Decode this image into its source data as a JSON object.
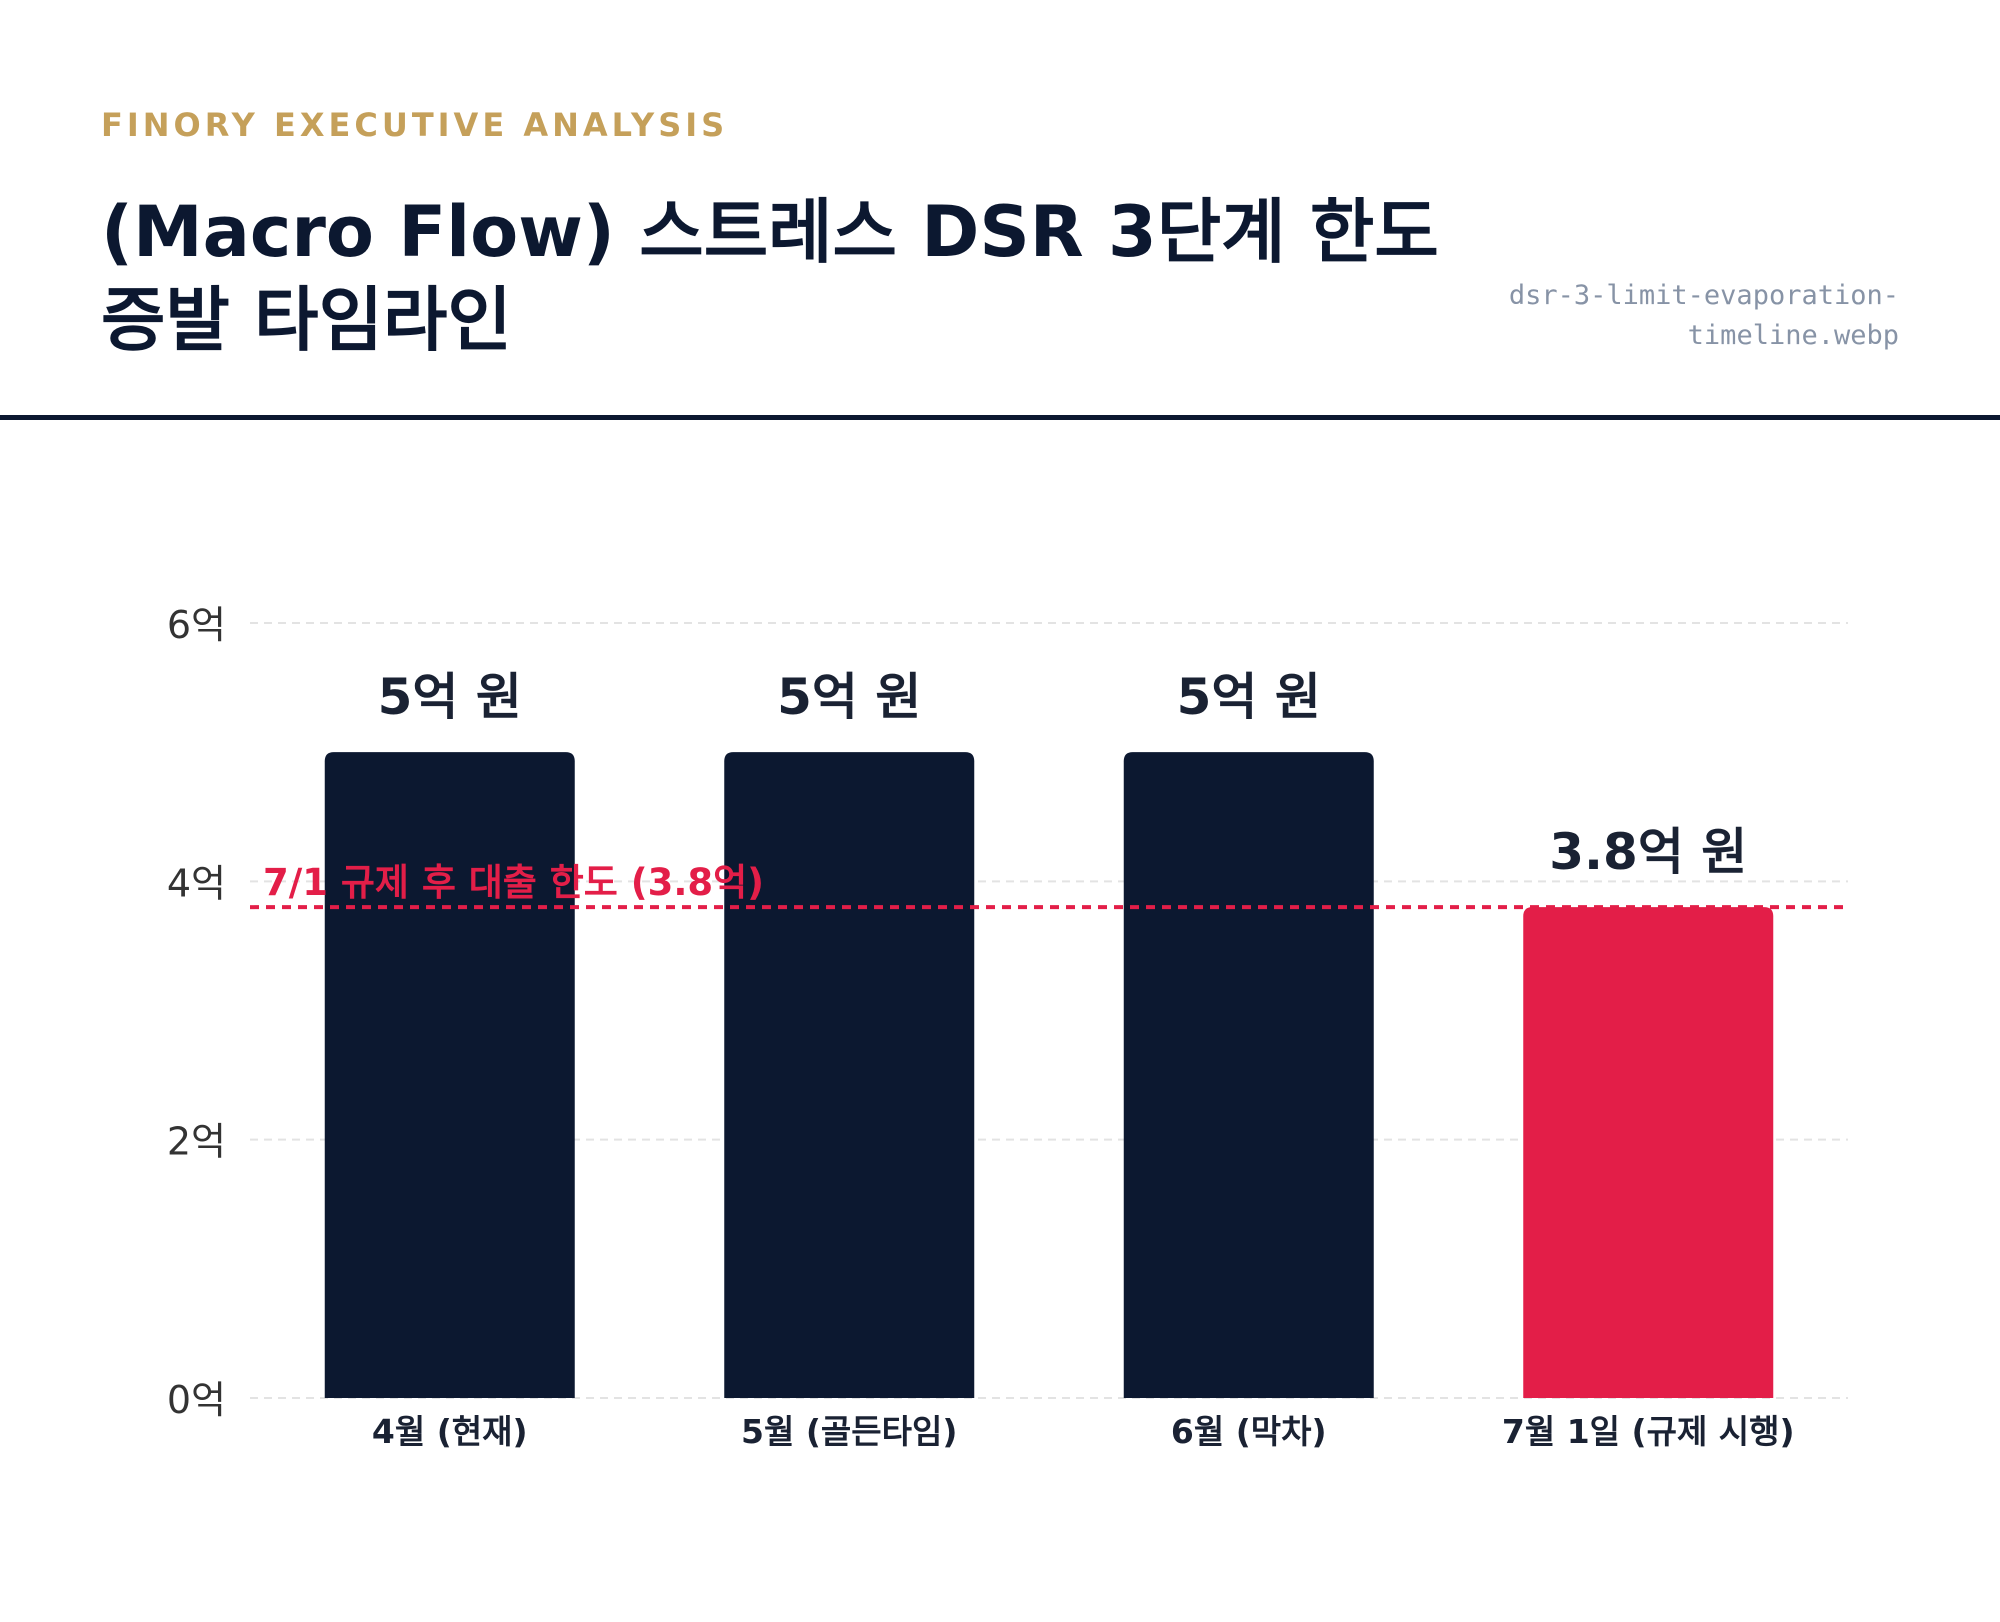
{
  "header": {
    "kicker": "FINORY EXECUTIVE ANALYSIS",
    "title": "(Macro Flow) 스트레스 DSR 3단계 한도 증발 타임라인",
    "filename": "dsr-3-limit-evaporation-timeline.webp"
  },
  "chart_data": {
    "type": "bar",
    "categories": [
      "4월 (현재)",
      "5월 (골든타임)",
      "6월 (막차)",
      "7월 1일 (규제 시행)"
    ],
    "values": [
      5,
      5,
      5,
      3.8
    ],
    "value_labels": [
      "5억 원",
      "5억 원",
      "5억 원",
      "3.8억 원"
    ],
    "bar_colors": [
      "#0c1830",
      "#0c1830",
      "#0c1830",
      "#e31e48"
    ],
    "yticks": [
      0,
      2,
      4,
      6
    ],
    "ytick_labels": [
      "0억",
      "2억",
      "4억",
      "6억"
    ],
    "ylim": [
      0,
      6
    ],
    "grid": true,
    "reference_line": {
      "value": 3.8,
      "label": "7/1 규제 후 대출 한도 (3.8억)",
      "color": "#e31e48"
    },
    "colors": {
      "primary": "#0c1830",
      "accent": "#e31e48",
      "gold": "#c5a05a",
      "grid": "#e3e3e3"
    }
  }
}
